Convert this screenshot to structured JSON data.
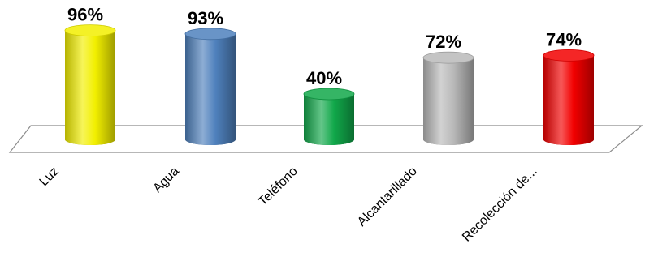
{
  "chart_data": {
    "type": "bar",
    "title": "",
    "xlabel": "",
    "ylabel": "",
    "ylim": [
      0,
      100
    ],
    "grid": false,
    "legend": "none",
    "categories": [
      "Luz",
      "Agua",
      "Teléfono",
      "Alcantarillado",
      "Recolección de..."
    ],
    "values": [
      96,
      93,
      40,
      72,
      74
    ],
    "data_labels": [
      "96%",
      "93%",
      "40%",
      "72%",
      "74%"
    ],
    "colors": [
      "#f2ef00",
      "#4f81bd",
      "#11a84a",
      "#b9b9b9",
      "#f20000"
    ]
  }
}
